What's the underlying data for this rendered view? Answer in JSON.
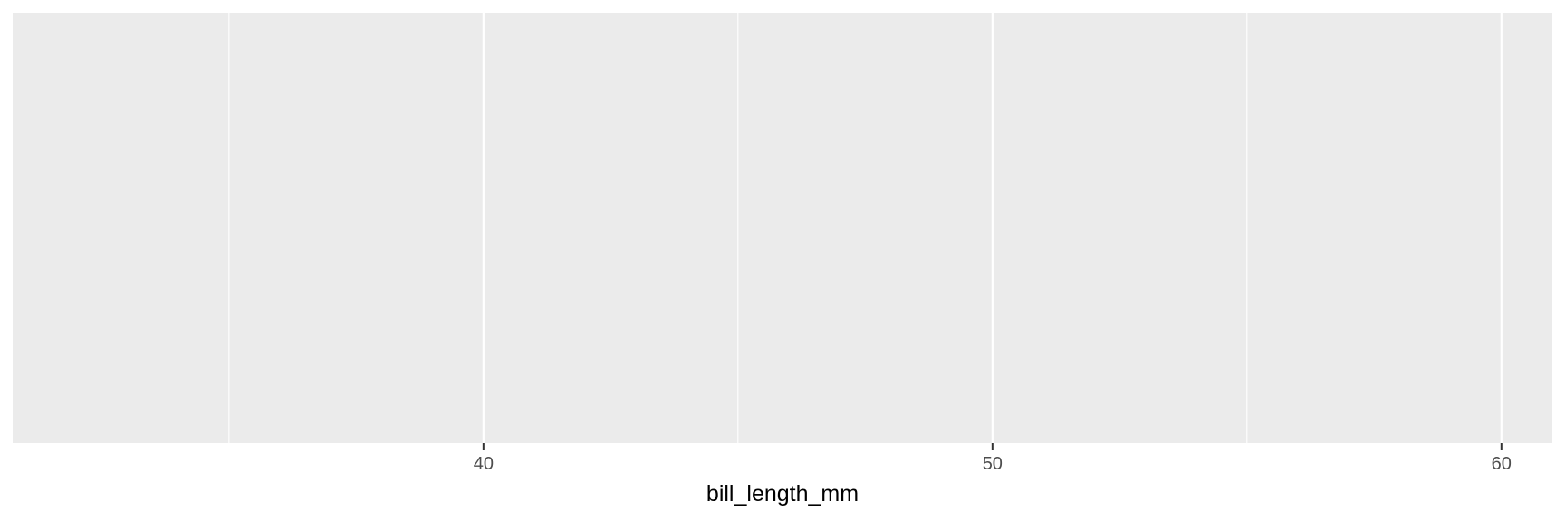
{
  "chart_data": {
    "type": "scatter",
    "xlabel": "bill_length_mm",
    "ylabel": "",
    "title": "",
    "xlim": [
      30.75,
      61.0
    ],
    "x_ticks": [
      {
        "value": 40,
        "label": "40"
      },
      {
        "value": 50,
        "label": "50"
      },
      {
        "value": 60,
        "label": "60"
      }
    ],
    "x_minor_ticks": [
      35,
      45,
      55
    ],
    "grid": true,
    "panel_background": "#EBEBEB",
    "grid_color": "#FFFFFF",
    "series": []
  }
}
